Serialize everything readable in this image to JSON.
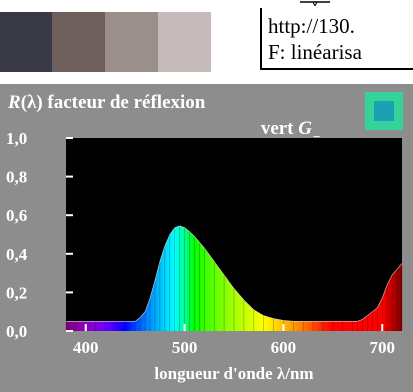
{
  "header": {
    "url_text": "http://130.",
    "subtitle_text": "F: linéarisa",
    "swatches": [
      "#3a3a46",
      "#6e5f5d",
      "#9b8f8c",
      "#c4bbba",
      "#ffffff"
    ]
  },
  "sample_patch": {
    "outer_color": "#35d39a",
    "inner_color": "#1aa2b4"
  },
  "chart_data": {
    "type": "line",
    "title": "R(λ) facteur de réflexion",
    "title_parts": {
      "symbol": "R",
      "rest": "(λ) facteur de réflexion"
    },
    "subtitle": "vert G−",
    "subtitle_parts": {
      "word": "vert",
      "symbol": "G",
      "sub": "−"
    },
    "xlabel": "longueur d'onde λ/nm",
    "ylabel": "",
    "xlim": [
      380,
      720
    ],
    "ylim": [
      0,
      1.0
    ],
    "x_ticks": [
      "400",
      "500",
      "600",
      "700"
    ],
    "y_ticks": [
      "0,0",
      "0,2",
      "0,4",
      "0,6",
      "0,8",
      "1,0"
    ],
    "grid": false,
    "background": "#000000",
    "series": [
      {
        "x": [
          380,
          390,
          400,
          410,
          420,
          430,
          440,
          450,
          455,
          460,
          465,
          470,
          475,
          480,
          485,
          490,
          495,
          500,
          505,
          510,
          515,
          520,
          530,
          540,
          550,
          560,
          570,
          580,
          590,
          600,
          610,
          620,
          630,
          640,
          650,
          660,
          670,
          675,
          680,
          685,
          690,
          695,
          700,
          705,
          710,
          715,
          720
        ],
        "values": [
          0.05,
          0.05,
          0.05,
          0.05,
          0.05,
          0.05,
          0.05,
          0.05,
          0.07,
          0.1,
          0.17,
          0.26,
          0.36,
          0.44,
          0.5,
          0.535,
          0.545,
          0.535,
          0.515,
          0.49,
          0.46,
          0.43,
          0.36,
          0.29,
          0.22,
          0.16,
          0.11,
          0.08,
          0.065,
          0.055,
          0.05,
          0.05,
          0.05,
          0.05,
          0.05,
          0.05,
          0.05,
          0.05,
          0.06,
          0.08,
          0.1,
          0.12,
          0.17,
          0.24,
          0.29,
          0.32,
          0.35
        ]
      }
    ]
  }
}
